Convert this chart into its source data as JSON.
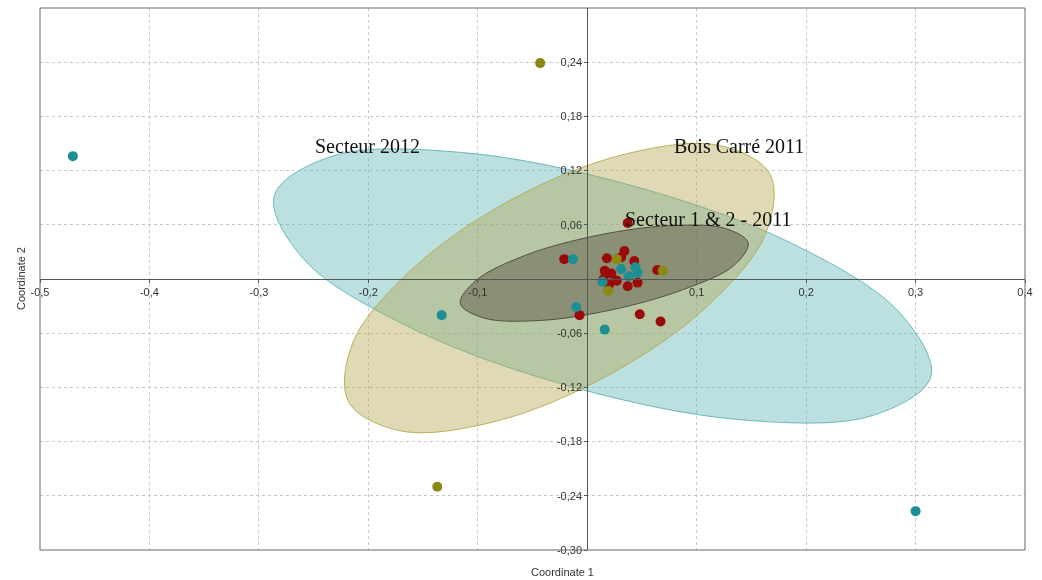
{
  "chart_data": {
    "type": "scatter",
    "xlabel": "Coordinate 1",
    "ylabel": "Coordinate 2",
    "xlim": [
      -0.5,
      0.4
    ],
    "ylim": [
      -0.3,
      0.3
    ],
    "xticks": [
      {
        "value": -0.5,
        "label": "-0,5"
      },
      {
        "value": -0.4,
        "label": "-0,4"
      },
      {
        "value": -0.3,
        "label": "-0,3"
      },
      {
        "value": -0.2,
        "label": "-0,2"
      },
      {
        "value": -0.1,
        "label": "-0,1"
      },
      {
        "value": 0.1,
        "label": "0,1"
      },
      {
        "value": 0.2,
        "label": "0,2"
      },
      {
        "value": 0.3,
        "label": "0,3"
      },
      {
        "value": 0.4,
        "label": "0,4"
      }
    ],
    "yticks": [
      {
        "value": -0.3,
        "label": "-0,30"
      },
      {
        "value": -0.24,
        "label": "-0,24"
      },
      {
        "value": -0.18,
        "label": "-0,18"
      },
      {
        "value": -0.12,
        "label": "-0,12"
      },
      {
        "value": -0.06,
        "label": "-0,06"
      },
      {
        "value": 0.06,
        "label": "0,06"
      },
      {
        "value": 0.12,
        "label": "0,12"
      },
      {
        "value": 0.18,
        "label": "0,18"
      },
      {
        "value": 0.24,
        "label": "0,24"
      }
    ],
    "grid": true,
    "marker": "circle",
    "annotations": [
      "Secteur 2012",
      "Bois Carré 2011",
      "Secteur 1 & 2 - 2011"
    ],
    "series": [
      {
        "type": "area",
        "marker": "none",
        "color": "#5fb3b5",
        "x": [
          0.314,
          0.261,
          0.142,
          -0.012,
          -0.158,
          -0.259,
          -0.286,
          -0.233,
          -0.114,
          0.039,
          0.186,
          0.286
        ],
        "values": [
          -0.108,
          -0.151,
          -0.156,
          -0.12,
          -0.056,
          0.022,
          0.092,
          0.136,
          0.14,
          0.104,
          0.04,
          -0.038
        ]
      },
      {
        "type": "area",
        "marker": "none",
        "color": "#b3a84e",
        "x": [
          0.167,
          0.163,
          0.108,
          0.017,
          -0.085,
          -0.171,
          -0.218,
          -0.214,
          -0.159,
          -0.069,
          0.034,
          0.12
        ],
        "values": [
          0.116,
          0.05,
          -0.032,
          -0.108,
          -0.158,
          -0.168,
          -0.136,
          -0.07,
          0.012,
          0.088,
          0.138,
          0.148
        ]
      },
      {
        "type": "area",
        "marker": "none",
        "color": "#4a4538",
        "x": [
          0.147,
          0.134,
          0.087,
          0.023,
          -0.044,
          -0.095,
          -0.116,
          -0.102,
          -0.057,
          0.008,
          0.075,
          0.126
        ],
        "values": [
          0.04,
          0.015,
          -0.012,
          -0.034,
          -0.046,
          -0.043,
          -0.027,
          -0.002,
          0.026,
          0.048,
          0.059,
          0.056
        ]
      },
      {
        "color": "#9b0a0a",
        "x": [
          0.037,
          -0.021,
          -0.007,
          0.048,
          0.067,
          0.064,
          0.034,
          0.031,
          0.018,
          0.043,
          0.016,
          0.015,
          0.02,
          0.027,
          0.037,
          0.046,
          0.022
        ],
        "values": [
          0.062,
          0.022,
          -0.04,
          -0.039,
          -0.047,
          0.01,
          0.031,
          0.024,
          0.023,
          0.02,
          0.009,
          0.0,
          -0.006,
          -0.002,
          -0.008,
          -0.004,
          0.006
        ]
      },
      {
        "color": "#8a8a10",
        "x": [
          -0.043,
          -0.137,
          0.019,
          0.069,
          0.027
        ],
        "values": [
          0.239,
          -0.23,
          -0.013,
          0.009,
          0.022
        ]
      },
      {
        "color": "#1a8f94",
        "x": [
          -0.47,
          -0.133,
          0.3,
          0.016,
          -0.01,
          -0.013,
          0.014,
          0.046,
          0.038,
          0.044,
          0.031
        ],
        "values": [
          0.136,
          -0.04,
          -0.257,
          -0.056,
          -0.031,
          0.022,
          -0.003,
          0.007,
          0.003,
          0.013,
          0.011
        ]
      }
    ]
  }
}
